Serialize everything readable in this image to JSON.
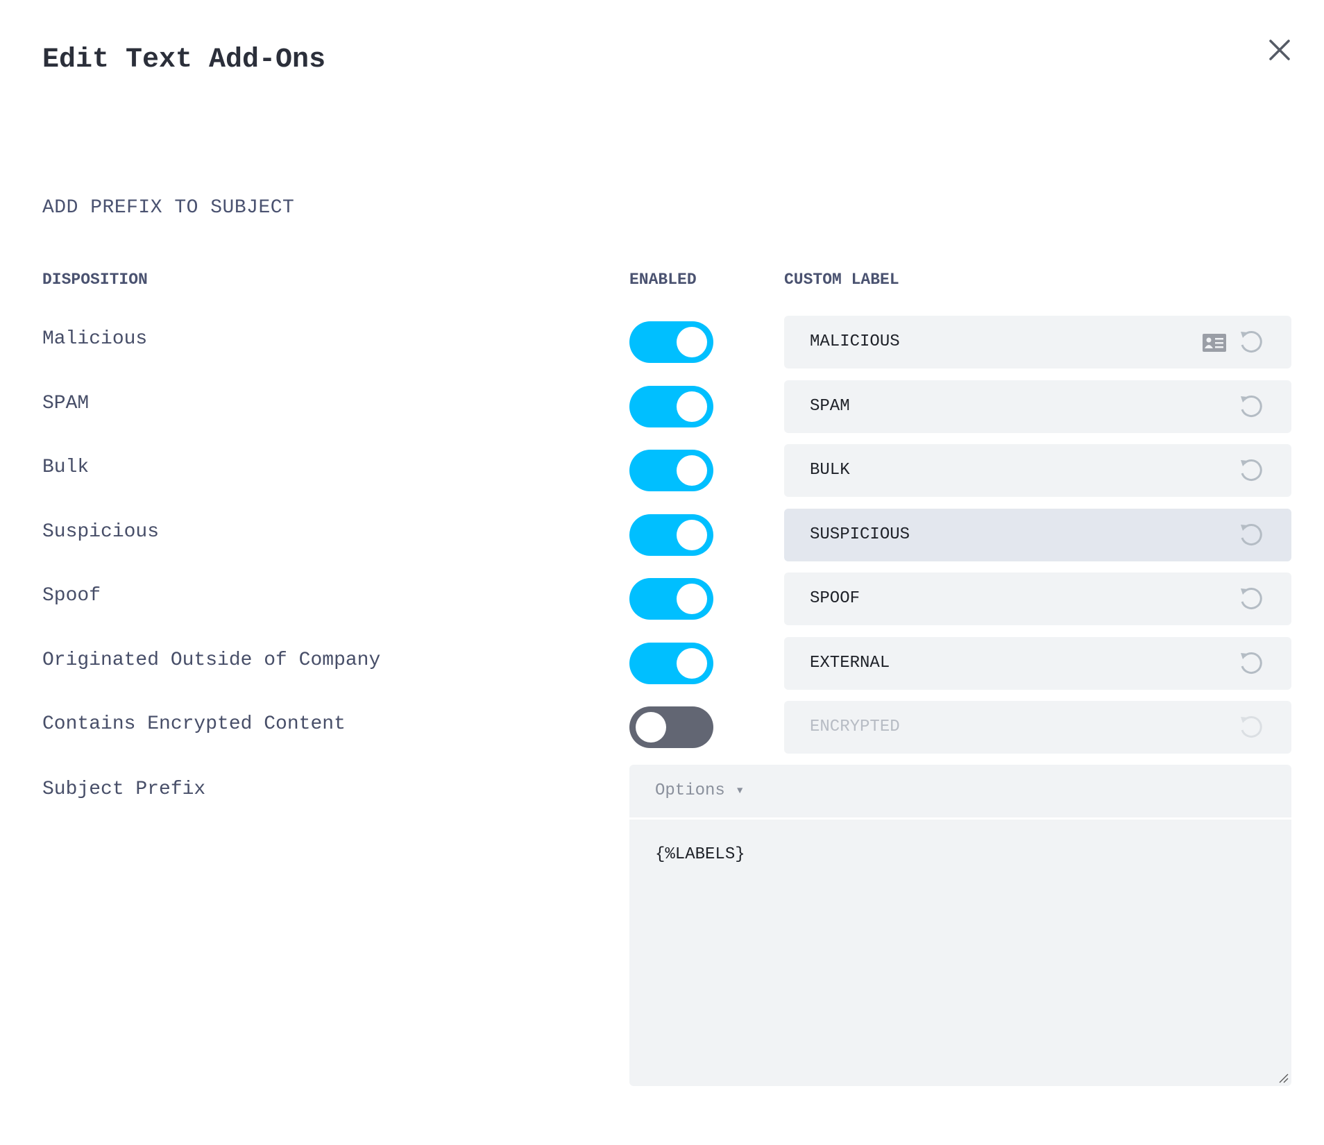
{
  "dialog": {
    "title": "Edit Text Add-Ons",
    "close_icon": "close-icon"
  },
  "section": {
    "title": "ADD PREFIX TO SUBJECT"
  },
  "columns": {
    "disposition": "DISPOSITION",
    "enabled": "ENABLED",
    "custom_label": "CUSTOM LABEL"
  },
  "rows": [
    {
      "disposition": "Malicious",
      "enabled": true,
      "label": "MALICIOUS",
      "has_card_icon": true
    },
    {
      "disposition": "SPAM",
      "enabled": true,
      "label": "SPAM"
    },
    {
      "disposition": "Bulk",
      "enabled": true,
      "label": "BULK"
    },
    {
      "disposition": "Suspicious",
      "enabled": true,
      "label": "SUSPICIOUS",
      "hovered": true
    },
    {
      "disposition": "Spoof",
      "enabled": true,
      "label": "SPOOF"
    },
    {
      "disposition": "Originated Outside of Company",
      "enabled": true,
      "label": "EXTERNAL"
    },
    {
      "disposition": "Contains Encrypted Content",
      "enabled": false,
      "label": "ENCRYPTED"
    }
  ],
  "subject_prefix": {
    "label": "Subject Prefix",
    "options_label": "Options",
    "value": "{%LABELS}"
  },
  "colors": {
    "toggle_on": "#00bfff",
    "toggle_off": "#626673",
    "field_bg": "#f1f3f5",
    "field_hover": "#e3e7ee"
  }
}
